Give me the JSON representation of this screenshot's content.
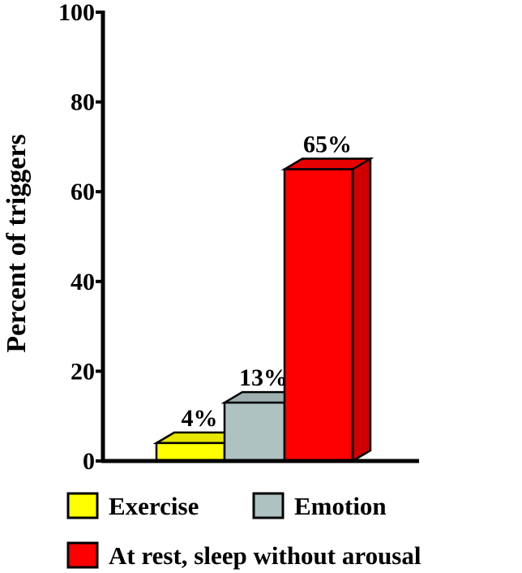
{
  "chart_data": {
    "type": "bar",
    "title": "",
    "xlabel": "",
    "ylabel": "Percent of triggers",
    "ylim": [
      0,
      100
    ],
    "yticks": [
      0,
      20,
      40,
      60,
      80,
      100
    ],
    "categories": [
      "Exercise",
      "Emotion",
      "At rest, sleep without arousal"
    ],
    "values": [
      4,
      13,
      65
    ],
    "value_labels": [
      "4%",
      "13%",
      "65%"
    ],
    "colors": [
      "#ffff00",
      "#aec2c2",
      "#ff0000"
    ],
    "style": "3d-bars",
    "grid": false,
    "legend_position": "bottom"
  }
}
